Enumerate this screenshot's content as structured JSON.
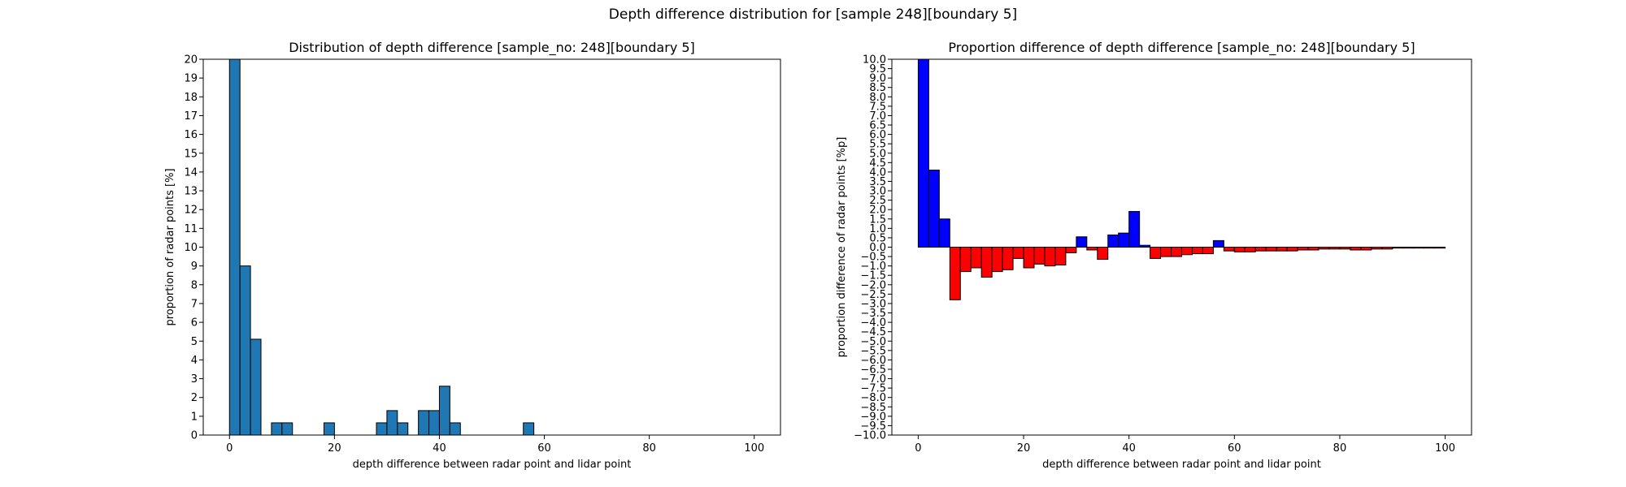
{
  "figure": {
    "title": "Depth difference distribution for [sample 248][boundary 5]"
  },
  "chart_data": [
    {
      "type": "bar",
      "title": "Distribution of depth difference [sample_no: 248][boundary 5]",
      "xlabel": "depth difference between radar point and lidar point",
      "ylabel": "proportion of radar points [%]",
      "xlim": [
        -5,
        105
      ],
      "ylim": [
        0,
        20
      ],
      "xticks": [
        0,
        20,
        40,
        60,
        80,
        100
      ],
      "xtick_labels": [
        "0",
        "20",
        "40",
        "60",
        "80",
        "100"
      ],
      "yticks": [
        0,
        1,
        2,
        3,
        4,
        5,
        6,
        7,
        8,
        9,
        10,
        11,
        12,
        13,
        14,
        15,
        16,
        17,
        18,
        19,
        20
      ],
      "ytick_labels": [
        "0",
        "1",
        "2",
        "3",
        "4",
        "5",
        "6",
        "7",
        "8",
        "9",
        "10",
        "11",
        "12",
        "13",
        "14",
        "15",
        "16",
        "17",
        "18",
        "19",
        "20"
      ],
      "bin_width": 2,
      "bin_starts": [
        0,
        2,
        4,
        6,
        8,
        10,
        12,
        14,
        16,
        18,
        20,
        22,
        24,
        26,
        28,
        30,
        32,
        34,
        36,
        38,
        40,
        42,
        44,
        46,
        48,
        50,
        52,
        54,
        56,
        58,
        60,
        62,
        64,
        66,
        68,
        70,
        72,
        74,
        76,
        78,
        80,
        82,
        84,
        86,
        88,
        90,
        92,
        94,
        96,
        98
      ],
      "values": [
        20.0,
        9.0,
        5.1,
        0,
        0.65,
        0.65,
        0,
        0,
        0,
        0.65,
        0,
        0,
        0,
        0,
        0.65,
        1.3,
        0.65,
        0,
        1.3,
        1.3,
        2.6,
        0.65,
        0,
        0,
        0,
        0,
        0,
        0,
        0.65,
        0,
        0,
        0,
        0,
        0,
        0,
        0,
        0,
        0,
        0,
        0,
        0,
        0,
        0,
        0,
        0,
        0,
        0,
        0,
        0,
        0
      ],
      "color": "#1f77b4",
      "edge_color": "#000000"
    },
    {
      "type": "bar",
      "title": "Proportion difference of depth difference [sample_no: 248][boundary 5]",
      "xlabel": "depth difference between radar point and lidar point",
      "ylabel": "proportion difference of radar points [%p]",
      "xlim": [
        -5,
        105
      ],
      "ylim": [
        -10,
        10
      ],
      "xticks": [
        0,
        20,
        40,
        60,
        80,
        100
      ],
      "xtick_labels": [
        "0",
        "20",
        "40",
        "60",
        "80",
        "100"
      ],
      "yticks": [
        -10,
        -9.5,
        -9,
        -8.5,
        -8,
        -7.5,
        -7,
        -6.5,
        -6,
        -5.5,
        -5,
        -4.5,
        -4,
        -3.5,
        -3,
        -2.5,
        -2,
        -1.5,
        -1,
        -0.5,
        0,
        0.5,
        1,
        1.5,
        2,
        2.5,
        3,
        3.5,
        4,
        4.5,
        5,
        5.5,
        6,
        6.5,
        7,
        7.5,
        8,
        8.5,
        9,
        9.5,
        10
      ],
      "ytick_labels": [
        "−10.0",
        "−9.5",
        "−9.0",
        "−8.5",
        "−8.0",
        "−7.5",
        "−7.0",
        "−6.5",
        "−6.0",
        "−5.5",
        "−5.0",
        "−4.5",
        "−4.0",
        "−3.5",
        "−3.0",
        "−2.5",
        "−2.0",
        "−1.5",
        "−1.0",
        "−0.5",
        "0.0",
        "0.5",
        "1.0",
        "1.5",
        "2.0",
        "2.5",
        "3.0",
        "3.5",
        "4.0",
        "4.5",
        "5.0",
        "5.5",
        "6.0",
        "6.5",
        "7.0",
        "7.5",
        "8.0",
        "8.5",
        "9.0",
        "9.5",
        "10.0"
      ],
      "bin_width": 2,
      "bin_starts": [
        0,
        2,
        4,
        6,
        8,
        10,
        12,
        14,
        16,
        18,
        20,
        22,
        24,
        26,
        28,
        30,
        32,
        34,
        36,
        38,
        40,
        42,
        44,
        46,
        48,
        50,
        52,
        54,
        56,
        58,
        60,
        62,
        64,
        66,
        68,
        70,
        72,
        74,
        76,
        78,
        80,
        82,
        84,
        86,
        88,
        90,
        92,
        94,
        96,
        98
      ],
      "values": [
        10.0,
        4.1,
        1.5,
        -2.8,
        -1.3,
        -1.1,
        -1.6,
        -1.3,
        -1.2,
        -0.6,
        -1.1,
        -0.9,
        -1.0,
        -0.95,
        -0.3,
        0.55,
        -0.15,
        -0.65,
        0.65,
        0.75,
        1.9,
        0.1,
        -0.6,
        -0.5,
        -0.5,
        -0.4,
        -0.35,
        -0.35,
        0.35,
        -0.2,
        -0.25,
        -0.25,
        -0.2,
        -0.2,
        -0.2,
        -0.2,
        -0.15,
        -0.15,
        -0.1,
        -0.1,
        -0.1,
        -0.15,
        -0.15,
        -0.1,
        -0.1,
        -0.05,
        -0.05,
        -0.05,
        -0.05,
        -0.05
      ],
      "positive_color": "#0000ff",
      "negative_color": "#ff0000",
      "edge_color": "#000000"
    }
  ]
}
